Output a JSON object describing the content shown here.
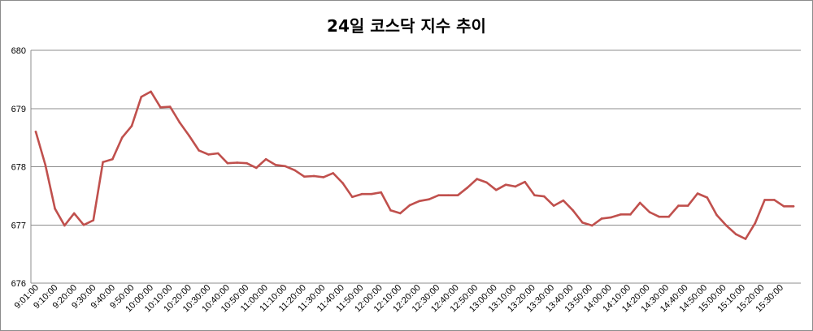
{
  "chart_data": {
    "type": "line",
    "title": "24일 코스닥 지수 추이",
    "xlabel": "",
    "ylabel": "",
    "ylim": [
      676,
      680
    ],
    "yticks": [
      676,
      677,
      678,
      679,
      680
    ],
    "grid": "horizontal",
    "legend": "none",
    "line_color": "#c0504d",
    "x_tick_labels": [
      "9:01:00",
      "9:10:00",
      "9:20:00",
      "9:30:00",
      "9:40:00",
      "9:50:00",
      "10:00:00",
      "10:10:00",
      "10:20:00",
      "10:30:00",
      "10:40:00",
      "10:50:00",
      "11:00:00",
      "11:10:00",
      "11:20:00",
      "11:30:00",
      "11:40:00",
      "11:50:00",
      "12:00:00",
      "12:10:00",
      "12:20:00",
      "12:30:00",
      "12:40:00",
      "12:50:00",
      "13:00:00",
      "13:10:00",
      "13:20:00",
      "13:30:00",
      "13:40:00",
      "13:50:00",
      "14:00:00",
      "14:10:00",
      "14:20:00",
      "14:30:00",
      "14:40:00",
      "14:50:00",
      "15:00:00",
      "15:10:00",
      "15:20:00",
      "15:30:00"
    ],
    "values": [
      678.6,
      678.03,
      677.28,
      676.99,
      677.2,
      677.0,
      677.08,
      678.08,
      678.13,
      678.5,
      678.7,
      679.2,
      679.29,
      679.02,
      679.03,
      678.76,
      678.53,
      678.28,
      678.21,
      678.23,
      678.06,
      678.07,
      678.06,
      677.98,
      678.13,
      678.03,
      678.01,
      677.94,
      677.83,
      677.84,
      677.82,
      677.89,
      677.72,
      677.48,
      677.53,
      677.53,
      677.56,
      677.25,
      677.2,
      677.34,
      677.41,
      677.44,
      677.51,
      677.51,
      677.51,
      677.64,
      677.79,
      677.73,
      677.6,
      677.69,
      677.66,
      677.74,
      677.51,
      677.49,
      677.33,
      677.42,
      677.25,
      677.04,
      676.99,
      677.11,
      677.13,
      677.18,
      677.18,
      677.38,
      677.22,
      677.14,
      677.14,
      677.33,
      677.33,
      677.54,
      677.47,
      677.17,
      676.99,
      676.84,
      676.76,
      677.03,
      677.43,
      677.43,
      677.32,
      677.32
    ]
  }
}
